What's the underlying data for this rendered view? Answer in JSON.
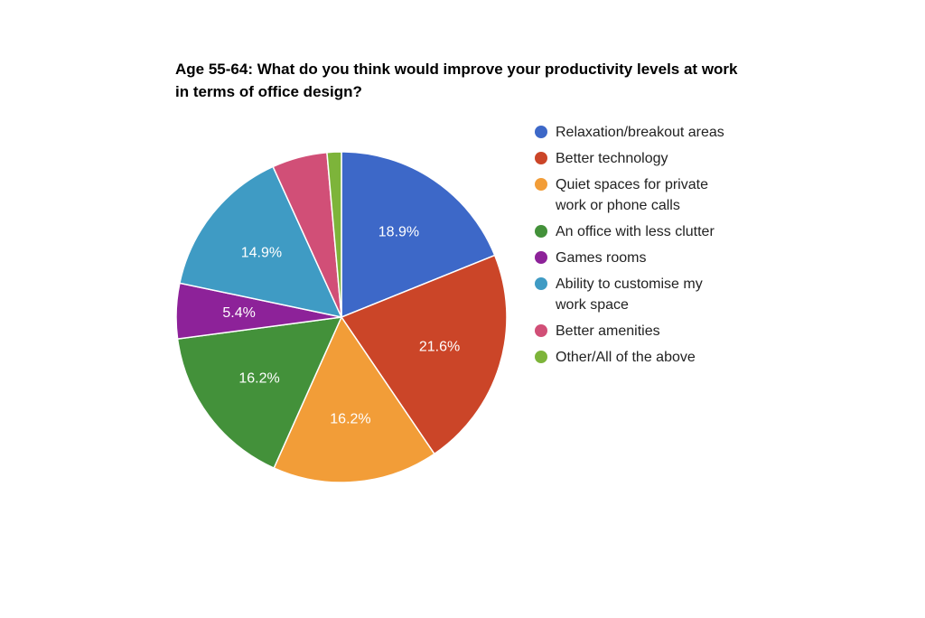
{
  "chart_data": {
    "type": "pie",
    "title": "Age 55-64: What do you think would improve your productivity levels at work in terms of office design?",
    "legend_position": "right",
    "start_angle_deg": 0,
    "direction": "clockwise",
    "slices": [
      {
        "name": "Relaxation/breakout areas",
        "value": 18.9,
        "label": "18.9%",
        "color": "#3D68C8"
      },
      {
        "name": "Better technology",
        "value": 21.6,
        "label": "21.6%",
        "color": "#CB4528"
      },
      {
        "name": "Quiet spaces for private work or phone calls",
        "value": 16.2,
        "label": "16.2%",
        "color": "#F29D38"
      },
      {
        "name": "An office with less clutter",
        "value": 16.2,
        "label": "16.2%",
        "color": "#43913A"
      },
      {
        "name": "Games rooms",
        "value": 5.4,
        "label": "5.4%",
        "color": "#8D2299"
      },
      {
        "name": "Ability to customise my work space",
        "value": 14.9,
        "label": "14.9%",
        "color": "#3F9BC4"
      },
      {
        "name": "Better amenities",
        "value": 5.4,
        "label": "",
        "color": "#D14F77"
      },
      {
        "name": "Other/All of the above",
        "value": 1.4,
        "label": "",
        "color": "#7DB43A"
      }
    ]
  }
}
